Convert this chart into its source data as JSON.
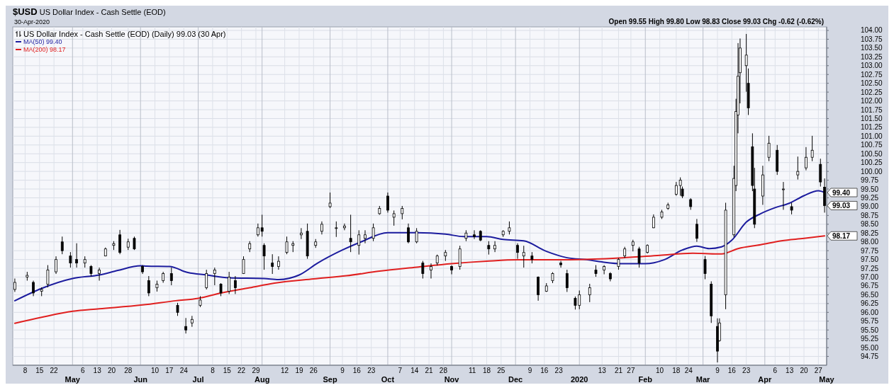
{
  "chart_data": {
    "type": "candlestick",
    "title": "$USD US Dollar Index - Cash Settle (EOD)",
    "subtitle": "30-Apr-2020",
    "annotations": [
      "Open 99.55 High 99.80 Low 98.83 Close 99.03 Chg -0.62 (-0.62%)",
      {
        "text": "99.40",
        "x": "2020-04-30",
        "y": 99.4
      },
      {
        "text": "99.03",
        "x": "2020-04-30",
        "y": 99.03
      },
      {
        "text": "98.17",
        "x": "2020-04-30",
        "y": 98.17
      }
    ],
    "xlim": [
      "2019-04-02",
      "2020-05-01"
    ],
    "xticks": [
      {
        "value": "2019-04-08",
        "label": "8"
      },
      {
        "value": "2019-04-15",
        "label": "15"
      },
      {
        "value": "2019-04-22",
        "label": "22"
      },
      {
        "value": "2019-05-06",
        "label": "6"
      },
      {
        "value": "2019-05-13",
        "label": "13"
      },
      {
        "value": "2019-05-20",
        "label": "20"
      },
      {
        "value": "2019-05-28",
        "label": "28"
      },
      {
        "value": "2019-06-10",
        "label": "10"
      },
      {
        "value": "2019-06-17",
        "label": "17"
      },
      {
        "value": "2019-06-24",
        "label": "24"
      },
      {
        "value": "2019-07-08",
        "label": "8"
      },
      {
        "value": "2019-07-15",
        "label": "15"
      },
      {
        "value": "2019-07-22",
        "label": "22"
      },
      {
        "value": "2019-07-29",
        "label": "29"
      },
      {
        "value": "2019-08-12",
        "label": "12"
      },
      {
        "value": "2019-08-19",
        "label": "19"
      },
      {
        "value": "2019-08-26",
        "label": "26"
      },
      {
        "value": "2019-09-09",
        "label": "9"
      },
      {
        "value": "2019-09-16",
        "label": "16"
      },
      {
        "value": "2019-09-23",
        "label": "23"
      },
      {
        "value": "2019-10-07",
        "label": "7"
      },
      {
        "value": "2019-10-14",
        "label": "14"
      },
      {
        "value": "2019-10-21",
        "label": "21"
      },
      {
        "value": "2019-10-28",
        "label": "28"
      },
      {
        "value": "2019-11-11",
        "label": "11"
      },
      {
        "value": "2019-11-18",
        "label": "18"
      },
      {
        "value": "2019-11-25",
        "label": "25"
      },
      {
        "value": "2019-12-09",
        "label": "9"
      },
      {
        "value": "2019-12-16",
        "label": "16"
      },
      {
        "value": "2019-12-23",
        "label": "23"
      },
      {
        "value": "2020-01-13",
        "label": "13"
      },
      {
        "value": "2020-01-21",
        "label": "21"
      },
      {
        "value": "2020-01-27",
        "label": "27"
      },
      {
        "value": "2020-02-10",
        "label": "10"
      },
      {
        "value": "2020-02-18",
        "label": "18"
      },
      {
        "value": "2020-02-24",
        "label": "24"
      },
      {
        "value": "2020-03-09",
        "label": "9"
      },
      {
        "value": "2020-03-16",
        "label": "16"
      },
      {
        "value": "2020-03-23",
        "label": "23"
      },
      {
        "value": "2020-04-06",
        "label": "6"
      },
      {
        "value": "2020-04-13",
        "label": "13"
      },
      {
        "value": "2020-04-20",
        "label": "20"
      },
      {
        "value": "2020-04-27",
        "label": "27"
      }
    ],
    "x2lim": [
      "2019-04-02",
      "2020-05-01"
    ],
    "x2ticks": [
      {
        "value": "2019-05-01",
        "label": "May"
      },
      {
        "value": "2019-06-03",
        "label": "Jun"
      },
      {
        "value": "2019-07-01",
        "label": "Jul"
      },
      {
        "value": "2019-08-01",
        "label": "Aug"
      },
      {
        "value": "2019-09-03",
        "label": "Sep"
      },
      {
        "value": "2019-10-01",
        "label": "Oct"
      },
      {
        "value": "2019-11-01",
        "label": "Nov"
      },
      {
        "value": "2019-12-02",
        "label": "Dec"
      },
      {
        "value": "2020-01-02",
        "label": "2020"
      },
      {
        "value": "2020-02-03",
        "label": "Feb"
      },
      {
        "value": "2020-03-02",
        "label": "Mar"
      },
      {
        "value": "2020-04-01",
        "label": "Apr"
      },
      {
        "value": "2020-05-01",
        "label": "May"
      }
    ],
    "ylim": [
      94.5,
      104.1
    ],
    "yticks": [
      {
        "value": 94.75,
        "label": "94.75"
      },
      {
        "value": 95,
        "label": "95.00"
      },
      {
        "value": 95.25,
        "label": "95.25"
      },
      {
        "value": 95.5,
        "label": "95.50"
      },
      {
        "value": 95.75,
        "label": "95.75"
      },
      {
        "value": 96,
        "label": "96.00"
      },
      {
        "value": 96.25,
        "label": "96.25"
      },
      {
        "value": 96.5,
        "label": "96.50"
      },
      {
        "value": 96.75,
        "label": "96.75"
      },
      {
        "value": 97,
        "label": "97.00"
      },
      {
        "value": 97.25,
        "label": "97.25"
      },
      {
        "value": 97.5,
        "label": "97.50"
      },
      {
        "value": 97.75,
        "label": "97.75"
      },
      {
        "value": 98,
        "label": "98.00"
      },
      {
        "value": 98.25,
        "label": "98.25"
      },
      {
        "value": 98.5,
        "label": "98.50"
      },
      {
        "value": 98.75,
        "label": "98.75"
      },
      {
        "value": 99,
        "label": "99.00"
      },
      {
        "value": 99.25,
        "label": "99.25"
      },
      {
        "value": 99.5,
        "label": "99.50"
      },
      {
        "value": 99.75,
        "label": "99.75"
      },
      {
        "value": 100,
        "label": "100.00"
      },
      {
        "value": 100.25,
        "label": "100.25"
      },
      {
        "value": 100.5,
        "label": "100.50"
      },
      {
        "value": 100.75,
        "label": "100.75"
      },
      {
        "value": 101,
        "label": "101.00"
      },
      {
        "value": 101.25,
        "label": "101.25"
      },
      {
        "value": 101.5,
        "label": "101.50"
      },
      {
        "value": 101.75,
        "label": "101.75"
      },
      {
        "value": 102,
        "label": "102.00"
      },
      {
        "value": 102.25,
        "label": "102.25"
      },
      {
        "value": 102.5,
        "label": "102.50"
      },
      {
        "value": 102.75,
        "label": "102.75"
      },
      {
        "value": 103,
        "label": "103.00"
      },
      {
        "value": 103.25,
        "label": "103.25"
      },
      {
        "value": 103.5,
        "label": "103.50"
      },
      {
        "value": 103.75,
        "label": "103.75"
      },
      {
        "value": 104,
        "label": "104.00"
      }
    ],
    "grid": true,
    "legend": "top left",
    "series": [
      {
        "name": "US Dollar Index - Cash Settle (EOD) (Daily) 99.03 (30 Apr)",
        "type": "candlestick",
        "color": "#000000",
        "x": [
          "2019-04-03",
          "2019-04-09",
          "2019-04-12",
          "2019-04-16",
          "2019-04-19",
          "2019-04-23",
          "2019-04-26",
          "2019-04-30",
          "2019-05-03",
          "2019-05-07",
          "2019-05-10",
          "2019-05-14",
          "2019-05-17",
          "2019-05-21",
          "2019-05-24",
          "2019-05-28",
          "2019-05-31",
          "2019-06-04",
          "2019-06-07",
          "2019-06-11",
          "2019-06-14",
          "2019-06-18",
          "2019-06-21",
          "2019-06-25",
          "2019-06-28",
          "2019-07-02",
          "2019-07-05",
          "2019-07-09",
          "2019-07-12",
          "2019-07-16",
          "2019-07-19",
          "2019-07-23",
          "2019-07-26",
          "2019-07-30",
          "2019-08-01",
          "2019-08-02",
          "2019-08-06",
          "2019-08-09",
          "2019-08-13",
          "2019-08-16",
          "2019-08-20",
          "2019-08-23",
          "2019-08-27",
          "2019-08-30",
          "2019-09-03",
          "2019-09-06",
          "2019-09-10",
          "2019-09-13",
          "2019-09-17",
          "2019-09-20",
          "2019-09-24",
          "2019-09-27",
          "2019-10-01",
          "2019-10-04",
          "2019-10-08",
          "2019-10-11",
          "2019-10-15",
          "2019-10-18",
          "2019-10-22",
          "2019-10-25",
          "2019-10-29",
          "2019-11-01",
          "2019-11-05",
          "2019-11-08",
          "2019-11-12",
          "2019-11-15",
          "2019-11-19",
          "2019-11-22",
          "2019-11-26",
          "2019-11-29",
          "2019-12-03",
          "2019-12-06",
          "2019-12-10",
          "2019-12-13",
          "2019-12-17",
          "2019-12-20",
          "2019-12-24",
          "2019-12-27",
          "2019-12-31",
          "2020-01-02",
          "2020-01-07",
          "2020-01-10",
          "2020-01-14",
          "2020-01-17",
          "2020-01-21",
          "2020-01-24",
          "2020-01-28",
          "2020-01-31",
          "2020-02-04",
          "2020-02-07",
          "2020-02-11",
          "2020-02-14",
          "2020-02-18",
          "2020-02-20",
          "2020-02-21",
          "2020-02-25",
          "2020-02-28",
          "2020-03-03",
          "2020-03-06",
          "2020-03-09",
          "2020-03-10",
          "2020-03-13",
          "2020-03-17",
          "2020-03-18",
          "2020-03-19",
          "2020-03-20",
          "2020-03-23",
          "2020-03-24",
          "2020-03-26",
          "2020-03-27",
          "2020-03-31",
          "2020-04-03",
          "2020-04-07",
          "2020-04-10",
          "2020-04-14",
          "2020-04-17",
          "2020-04-21",
          "2020-04-24",
          "2020-04-28",
          "2020-04-30"
        ],
        "ohlc": [
          [
            96.65,
            96.96,
            96.58,
            96.85
          ],
          [
            97.0,
            97.15,
            96.9,
            97.05
          ],
          [
            96.85,
            96.9,
            96.46,
            96.55
          ],
          [
            96.6,
            96.71,
            96.46,
            96.65
          ],
          [
            96.8,
            97.34,
            96.71,
            97.2
          ],
          [
            97.15,
            97.59,
            97.09,
            97.5
          ],
          [
            98.0,
            98.15,
            97.65,
            97.75
          ],
          [
            97.6,
            97.71,
            97.27,
            97.4
          ],
          [
            97.5,
            97.96,
            97.27,
            97.4
          ],
          [
            97.4,
            97.59,
            97.27,
            97.5
          ],
          [
            97.3,
            97.34,
            97.02,
            97.1
          ],
          [
            97.1,
            97.27,
            96.9,
            97.2
          ],
          [
            97.6,
            97.84,
            97.59,
            97.8
          ],
          [
            97.9,
            98.02,
            97.77,
            97.95
          ],
          [
            98.2,
            98.34,
            97.65,
            97.7
          ],
          [
            97.85,
            98.09,
            97.77,
            98.0
          ],
          [
            98.1,
            98.15,
            97.77,
            97.8
          ],
          [
            97.3,
            97.34,
            97.09,
            97.15
          ],
          [
            96.9,
            97.03,
            96.46,
            96.55
          ],
          [
            96.7,
            96.9,
            96.59,
            96.8
          ],
          [
            96.9,
            97.15,
            96.84,
            97.1
          ],
          [
            97.1,
            97.27,
            96.77,
            96.9
          ],
          [
            96.2,
            96.27,
            95.9,
            96.0
          ],
          [
            95.6,
            95.84,
            95.4,
            95.5
          ],
          [
            95.7,
            95.9,
            95.59,
            95.8
          ],
          [
            96.2,
            96.46,
            96.15,
            96.35
          ],
          [
            96.7,
            97.21,
            96.65,
            97.1
          ],
          [
            97.1,
            97.27,
            96.77,
            97.2
          ],
          [
            96.8,
            96.83,
            96.46,
            96.55
          ],
          [
            96.6,
            97.15,
            96.52,
            97.0
          ],
          [
            96.9,
            97.03,
            96.52,
            96.7
          ],
          [
            97.1,
            97.59,
            97.09,
            97.5
          ],
          [
            97.8,
            98.02,
            97.71,
            97.95
          ],
          [
            98.2,
            98.52,
            98.15,
            98.4
          ],
          [
            98.4,
            98.77,
            98.15,
            98.3
          ],
          [
            97.9,
            97.96,
            97.21,
            97.6
          ],
          [
            97.4,
            97.65,
            97.09,
            97.3
          ],
          [
            97.3,
            97.59,
            97.21,
            97.45
          ],
          [
            97.7,
            98.15,
            97.65,
            98.0
          ],
          [
            97.9,
            98.02,
            97.71,
            97.95
          ],
          [
            98.2,
            98.39,
            98.08,
            98.25
          ],
          [
            98.3,
            98.52,
            97.52,
            97.6
          ],
          [
            97.9,
            98.08,
            97.83,
            98.0
          ],
          [
            98.3,
            98.58,
            98.21,
            98.5
          ],
          [
            99.0,
            99.4,
            98.96,
            99.1
          ],
          [
            98.4,
            98.58,
            98.14,
            98.4
          ],
          [
            98.4,
            98.52,
            98.33,
            98.45
          ],
          [
            98.1,
            98.77,
            97.71,
            98.0
          ],
          [
            97.9,
            98.33,
            97.64,
            98.2
          ],
          [
            98.1,
            98.33,
            97.96,
            98.2
          ],
          [
            98.1,
            98.52,
            98.02,
            98.4
          ],
          [
            98.8,
            99.02,
            98.77,
            98.95
          ],
          [
            99.3,
            99.4,
            98.83,
            98.9
          ],
          [
            98.7,
            98.89,
            98.46,
            98.8
          ],
          [
            98.8,
            99.02,
            98.64,
            98.95
          ],
          [
            98.4,
            98.52,
            97.96,
            98.0
          ],
          [
            98.0,
            98.39,
            97.96,
            98.3
          ],
          [
            97.4,
            97.46,
            96.96,
            97.1
          ],
          [
            97.2,
            97.39,
            96.96,
            97.3
          ],
          [
            97.4,
            97.64,
            97.33,
            97.6
          ],
          [
            97.6,
            97.77,
            97.46,
            97.7
          ],
          [
            97.3,
            97.33,
            97.08,
            97.2
          ],
          [
            97.3,
            97.89,
            97.21,
            97.8
          ],
          [
            98.1,
            98.33,
            98.02,
            98.25
          ],
          [
            98.2,
            98.33,
            98.08,
            98.15
          ],
          [
            98.3,
            98.33,
            98.02,
            98.05
          ],
          [
            97.9,
            98.02,
            97.64,
            97.8
          ],
          [
            97.8,
            98.02,
            97.71,
            97.9
          ],
          [
            98.2,
            98.33,
            98.14,
            98.3
          ],
          [
            98.3,
            98.58,
            98.21,
            98.4
          ],
          [
            97.9,
            97.96,
            97.52,
            97.7
          ],
          [
            97.6,
            97.89,
            97.27,
            97.7
          ],
          [
            97.6,
            97.71,
            97.39,
            97.5
          ],
          [
            97.0,
            97.02,
            96.33,
            96.5
          ],
          [
            96.6,
            96.83,
            96.58,
            96.75
          ],
          [
            96.9,
            97.14,
            96.83,
            97.1
          ],
          [
            97.4,
            97.46,
            97.27,
            97.35
          ],
          [
            97.1,
            97.21,
            96.58,
            96.7
          ],
          [
            96.4,
            96.45,
            96.08,
            96.2
          ],
          [
            96.2,
            96.62,
            96.09,
            96.5
          ],
          [
            96.5,
            96.81,
            96.29,
            96.7
          ],
          [
            97.2,
            97.34,
            97.01,
            97.1
          ],
          [
            97.2,
            97.34,
            97.08,
            97.3
          ],
          [
            97.1,
            97.14,
            96.88,
            96.95
          ],
          [
            97.3,
            97.54,
            97.21,
            97.5
          ],
          [
            97.6,
            97.86,
            97.54,
            97.8
          ],
          [
            97.9,
            98.06,
            97.73,
            98.0
          ],
          [
            97.8,
            97.86,
            97.27,
            97.4
          ],
          [
            97.7,
            97.93,
            97.67,
            97.9
          ],
          [
            98.4,
            98.78,
            98.39,
            98.7
          ],
          [
            98.7,
            98.91,
            98.65,
            98.85
          ],
          [
            98.95,
            99.11,
            98.91,
            99.05
          ],
          [
            99.35,
            99.7,
            99.31,
            99.6
          ],
          [
            99.6,
            99.83,
            99.31,
            99.75
          ],
          [
            99.5,
            99.57,
            99.24,
            99.3
          ],
          [
            99.2,
            99.24,
            98.91,
            99.0
          ],
          [
            98.5,
            98.65,
            98.0,
            98.1
          ],
          [
            97.5,
            97.6,
            96.94,
            97.1
          ],
          [
            96.8,
            96.88,
            95.7,
            95.9
          ],
          [
            95.6,
            95.83,
            94.58,
            94.9
          ],
          [
            95.2,
            95.83,
            95.17,
            95.7
          ],
          [
            96.5,
            99.11,
            96.09,
            98.9
          ],
          [
            98.2,
            100.16,
            98.13,
            99.8
          ],
          [
            99.6,
            102.06,
            99.44,
            101.7
          ],
          [
            101.6,
            103.64,
            101.08,
            102.7
          ],
          [
            102.8,
            103.77,
            101.93,
            103.5
          ],
          [
            103.0,
            103.9,
            102.26,
            103.3
          ],
          [
            102.5,
            102.92,
            101.6,
            101.8
          ],
          [
            100.7,
            101.08,
            99.44,
            99.6
          ],
          [
            99.5,
            100.1,
            98.39,
            98.5
          ],
          [
            99.3,
            100.16,
            99.05,
            99.9
          ],
          [
            100.4,
            101.01,
            100.29,
            100.8
          ],
          [
            100.6,
            100.75,
            99.9,
            100.0
          ],
          [
            99.5,
            99.7,
            98.91,
            99.5
          ],
          [
            99.0,
            99.11,
            98.78,
            98.9
          ],
          [
            99.9,
            100.42,
            99.77,
            100.0
          ],
          [
            100.1,
            100.69,
            100.03,
            100.4
          ],
          [
            100.4,
            101.01,
            100.29,
            100.6
          ],
          [
            100.2,
            100.36,
            99.57,
            99.7
          ],
          [
            99.55,
            99.8,
            98.83,
            99.03
          ]
        ]
      },
      {
        "name": "MA(50) 99.40",
        "type": "line",
        "color": "#1c1c9e",
        "x": [
          "2019-04-03",
          "2019-04-16",
          "2019-05-01",
          "2019-05-14",
          "2019-05-23",
          "2019-06-03",
          "2019-06-06",
          "2019-06-17",
          "2019-06-26",
          "2019-07-05",
          "2019-07-16",
          "2019-08-02",
          "2019-08-09",
          "2019-08-19",
          "2019-08-28",
          "2019-09-09",
          "2019-09-18",
          "2019-10-01",
          "2019-10-15",
          "2019-10-29",
          "2019-11-07",
          "2019-11-18",
          "2019-11-26",
          "2019-12-06",
          "2019-12-17",
          "2019-12-27",
          "2020-01-06",
          "2020-01-13",
          "2020-01-23",
          "2020-02-03",
          "2020-02-12",
          "2020-02-21",
          "2020-02-28",
          "2020-03-05",
          "2020-03-11",
          "2020-03-16",
          "2020-03-23",
          "2020-03-30",
          "2020-04-06",
          "2020-04-13",
          "2020-04-20",
          "2020-04-27",
          "2020-04-30"
        ],
        "values": [
          96.33,
          96.68,
          96.96,
          97.06,
          97.19,
          97.32,
          97.31,
          97.3,
          97.13,
          97.06,
          96.98,
          96.96,
          96.93,
          97.06,
          97.4,
          97.77,
          98.0,
          98.26,
          98.26,
          98.22,
          98.15,
          98.15,
          98.07,
          98.03,
          97.73,
          97.55,
          97.49,
          97.43,
          97.38,
          97.38,
          97.49,
          97.77,
          97.88,
          97.81,
          97.86,
          98.05,
          98.56,
          98.8,
          98.97,
          99.1,
          99.31,
          99.45,
          99.4
        ]
      },
      {
        "name": "MA(200) 98.17",
        "type": "line",
        "color": "#e02020",
        "x": [
          "2019-04-03",
          "2019-04-16",
          "2019-05-01",
          "2019-05-14",
          "2019-06-04",
          "2019-06-20",
          "2019-07-01",
          "2019-07-12",
          "2019-07-26",
          "2019-08-07",
          "2019-08-26",
          "2019-09-11",
          "2019-09-27",
          "2019-10-15",
          "2019-11-01",
          "2019-11-18",
          "2019-12-03",
          "2019-12-20",
          "2020-01-07",
          "2020-01-23",
          "2020-02-10",
          "2020-02-26",
          "2020-03-09",
          "2020-03-11",
          "2020-03-19",
          "2020-03-30",
          "2020-04-09",
          "2020-04-20",
          "2020-04-30"
        ],
        "values": [
          95.69,
          95.86,
          96.03,
          96.1,
          96.21,
          96.33,
          96.4,
          96.55,
          96.7,
          96.83,
          96.95,
          97.04,
          97.17,
          97.28,
          97.38,
          97.45,
          97.49,
          97.49,
          97.51,
          97.55,
          97.62,
          97.68,
          97.66,
          97.66,
          97.81,
          97.92,
          98.03,
          98.1,
          98.17
        ]
      }
    ]
  }
}
